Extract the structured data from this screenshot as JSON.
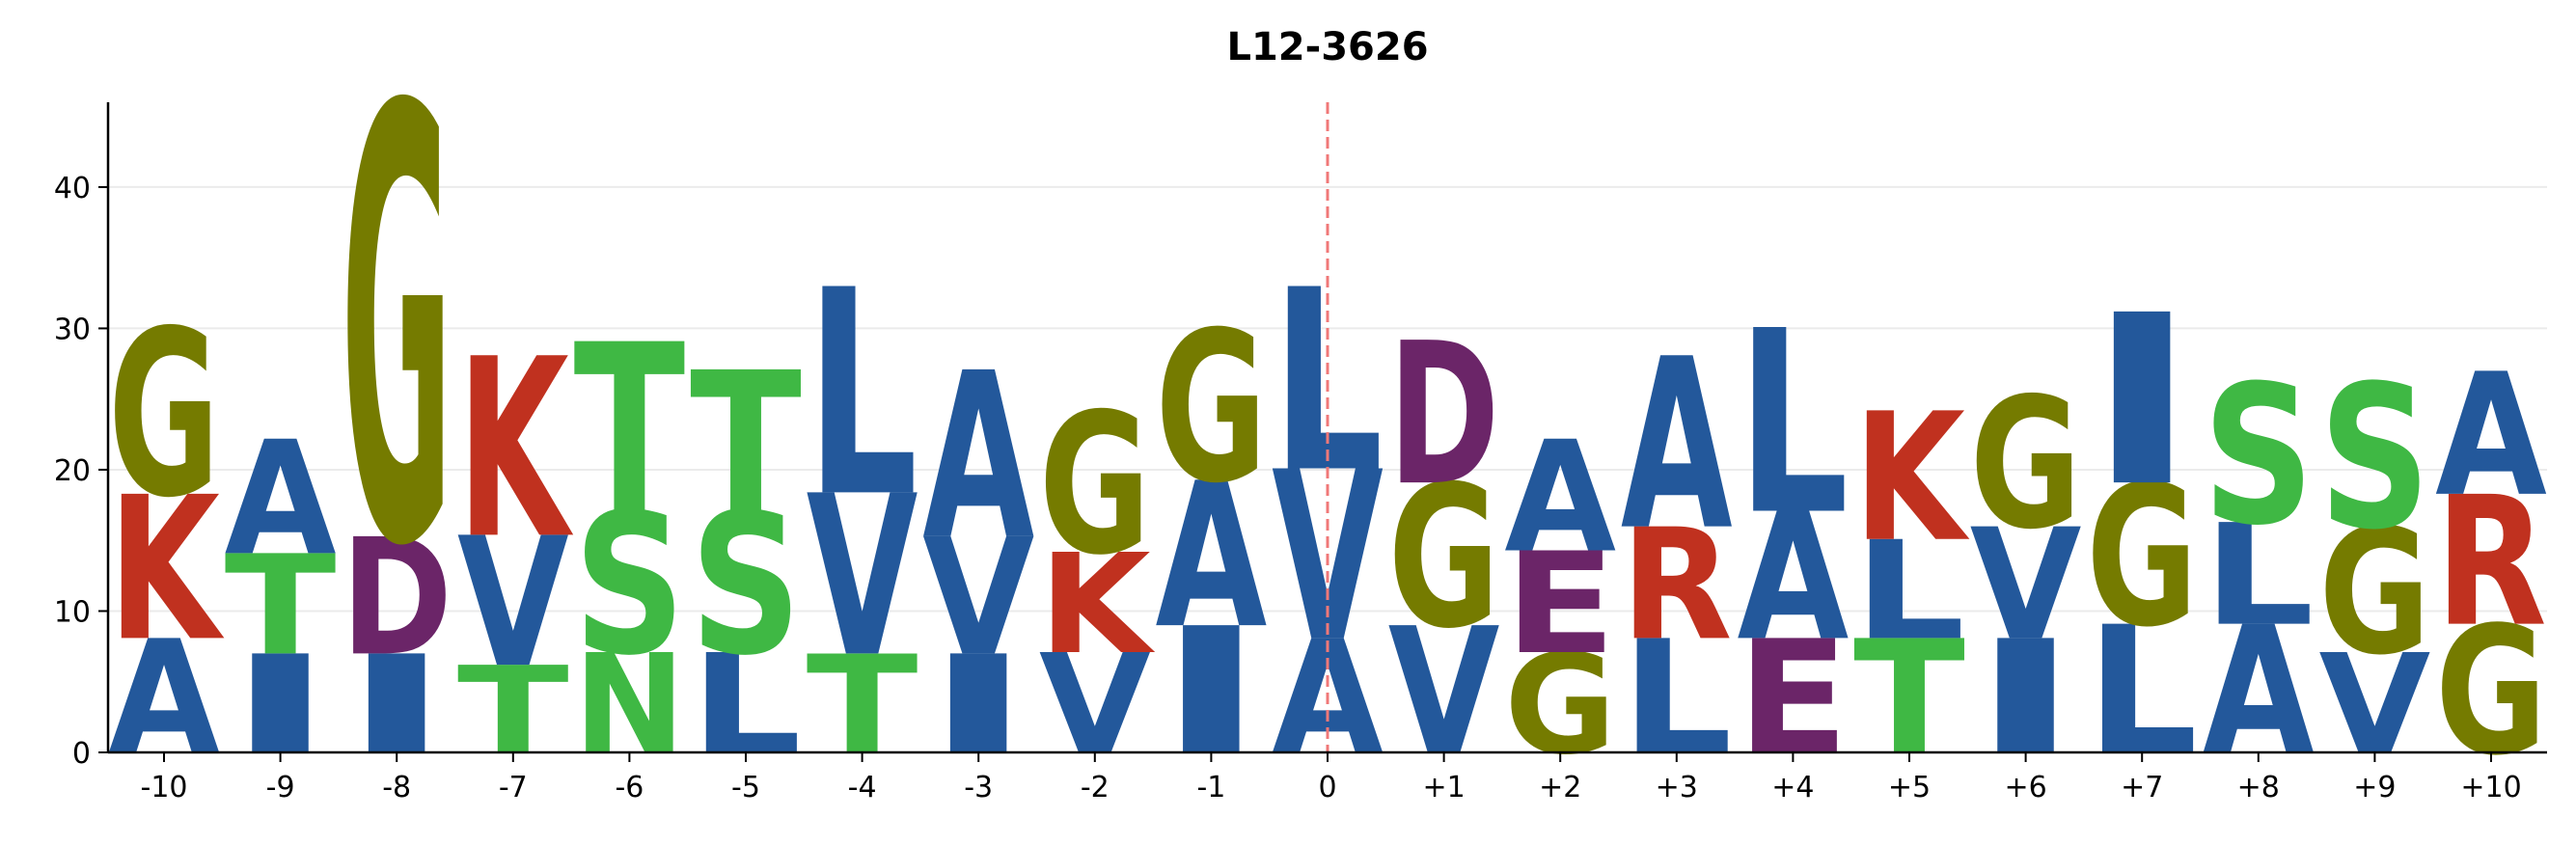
{
  "chart_data": {
    "type": "logo",
    "title": "L12-3626",
    "categories": [
      "-10",
      "-9",
      "-8",
      "-7",
      "-6",
      "-5",
      "-4",
      "-3",
      "-2",
      "-1",
      "0",
      "+1",
      "+2",
      "+3",
      "+4",
      "+5",
      "+6",
      "+7",
      "+8",
      "+9",
      "+10"
    ],
    "stacks": [
      [
        {
          "letter": "A",
          "value": 8.1
        },
        {
          "letter": "K",
          "value": 10.2
        },
        {
          "letter": "G",
          "value": 11.8
        }
      ],
      [
        {
          "letter": "I",
          "value": 7.0
        },
        {
          "letter": "T",
          "value": 7.1
        },
        {
          "letter": "A",
          "value": 8.1
        }
      ],
      [
        {
          "letter": "I",
          "value": 7.0
        },
        {
          "letter": "D",
          "value": 8.3
        },
        {
          "letter": "G",
          "value": 30.7
        }
      ],
      [
        {
          "letter": "T",
          "value": 6.2
        },
        {
          "letter": "V",
          "value": 9.2
        },
        {
          "letter": "K",
          "value": 12.7
        }
      ],
      [
        {
          "letter": "N",
          "value": 7.1
        },
        {
          "letter": "S",
          "value": 10.0
        },
        {
          "letter": "T",
          "value": 12.0
        }
      ],
      [
        {
          "letter": "L",
          "value": 7.1
        },
        {
          "letter": "S",
          "value": 10.0
        },
        {
          "letter": "T",
          "value": 10.0
        }
      ],
      [
        {
          "letter": "T",
          "value": 7.0
        },
        {
          "letter": "V",
          "value": 11.4
        },
        {
          "letter": "L",
          "value": 14.6
        }
      ],
      [
        {
          "letter": "I",
          "value": 7.0
        },
        {
          "letter": "V",
          "value": 8.3
        },
        {
          "letter": "A",
          "value": 11.8
        }
      ],
      [
        {
          "letter": "V",
          "value": 7.1
        },
        {
          "letter": "K",
          "value": 7.1
        },
        {
          "letter": "G",
          "value": 10.0
        }
      ],
      [
        {
          "letter": "I",
          "value": 9.0
        },
        {
          "letter": "A",
          "value": 10.3
        },
        {
          "letter": "G",
          "value": 10.7
        }
      ],
      [
        {
          "letter": "A",
          "value": 8.1
        },
        {
          "letter": "V",
          "value": 12.0
        },
        {
          "letter": "L",
          "value": 12.9
        }
      ],
      [
        {
          "letter": "V",
          "value": 9.0
        },
        {
          "letter": "G",
          "value": 10.1
        },
        {
          "letter": "D",
          "value": 10.1
        }
      ],
      [
        {
          "letter": "G",
          "value": 7.1
        },
        {
          "letter": "E",
          "value": 7.2
        },
        {
          "letter": "A",
          "value": 7.9
        }
      ],
      [
        {
          "letter": "L",
          "value": 8.1
        },
        {
          "letter": "R",
          "value": 7.9
        },
        {
          "letter": "A",
          "value": 12.1
        }
      ],
      [
        {
          "letter": "E",
          "value": 8.1
        },
        {
          "letter": "A",
          "value": 9.0
        },
        {
          "letter": "L",
          "value": 13.0
        }
      ],
      [
        {
          "letter": "T",
          "value": 8.1
        },
        {
          "letter": "L",
          "value": 7.0
        },
        {
          "letter": "K",
          "value": 9.1
        }
      ],
      [
        {
          "letter": "I",
          "value": 8.1
        },
        {
          "letter": "V",
          "value": 7.9
        },
        {
          "letter": "G",
          "value": 9.3
        }
      ],
      [
        {
          "letter": "L",
          "value": 9.1
        },
        {
          "letter": "G",
          "value": 10.0
        },
        {
          "letter": "I",
          "value": 12.1
        }
      ],
      [
        {
          "letter": "A",
          "value": 9.1
        },
        {
          "letter": "L",
          "value": 7.2
        },
        {
          "letter": "S",
          "value": 9.9
        }
      ],
      [
        {
          "letter": "V",
          "value": 7.1
        },
        {
          "letter": "G",
          "value": 8.9
        },
        {
          "letter": "S",
          "value": 10.2
        }
      ],
      [
        {
          "letter": "G",
          "value": 9.1
        },
        {
          "letter": "R",
          "value": 9.2
        },
        {
          "letter": "A",
          "value": 8.7
        }
      ]
    ],
    "colors": {
      "A": "#23589b",
      "I": "#23589b",
      "L": "#23589b",
      "V": "#23589b",
      "K": "#c0311f",
      "R": "#c0311f",
      "G": "#757b00",
      "T": "#3fb844",
      "S": "#3fb844",
      "N": "#3fb844",
      "D": "#6b2568",
      "E": "#6b2568"
    },
    "ylim": [
      0,
      46
    ],
    "yticks": [
      0,
      10,
      20,
      30,
      40
    ],
    "grid": true,
    "marker_index": 10,
    "marker_color": "#f07878"
  }
}
